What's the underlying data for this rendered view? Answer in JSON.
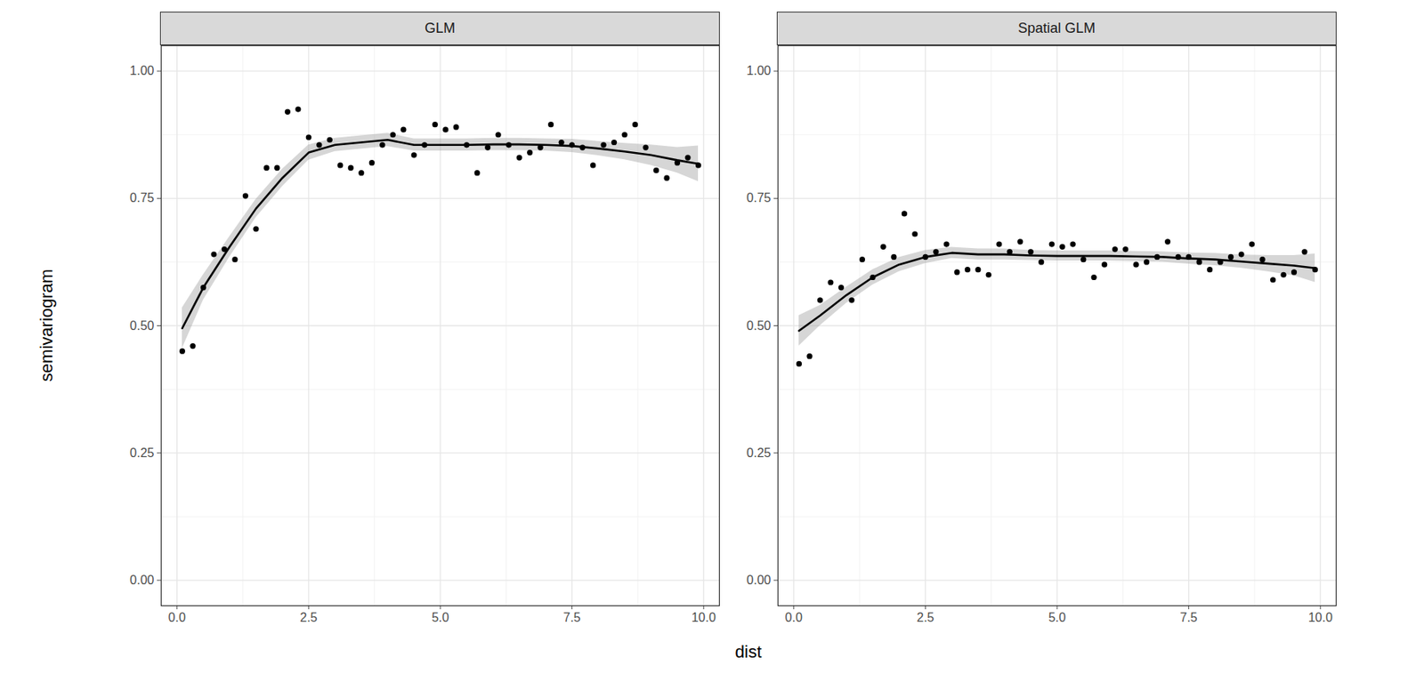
{
  "chart_data": {
    "type": "scatter",
    "xlabel": "dist",
    "ylabel": "semivariogram",
    "color": "#000000",
    "grid": true,
    "xlim": [
      -0.3,
      10.3
    ],
    "ylim": [
      -0.05,
      1.05
    ],
    "xticks": [
      {
        "value": 0,
        "label": "0.0"
      },
      {
        "value": 2.5,
        "label": "2.5"
      },
      {
        "value": 5,
        "label": "5.0"
      },
      {
        "value": 7.5,
        "label": "7.5"
      },
      {
        "value": 10,
        "label": "10.0"
      }
    ],
    "yticks": [
      {
        "value": 0,
        "label": "0.00"
      },
      {
        "value": 0.25,
        "label": "0.25"
      },
      {
        "value": 0.5,
        "label": "0.50"
      },
      {
        "value": 0.75,
        "label": "0.75"
      },
      {
        "value": 1,
        "label": "1.00"
      }
    ],
    "x": [
      0.1,
      0.3,
      0.5,
      0.7,
      0.9,
      1.1,
      1.3,
      1.5,
      1.7,
      1.9,
      2.1,
      2.3,
      2.5,
      2.7,
      2.9,
      3.1,
      3.3,
      3.5,
      3.7,
      3.9,
      4.1,
      4.3,
      4.5,
      4.7,
      4.9,
      5.1,
      5.3,
      5.5,
      5.7,
      5.9,
      6.1,
      6.3,
      6.5,
      6.7,
      6.9,
      7.1,
      7.3,
      7.5,
      7.7,
      7.9,
      8.1,
      8.3,
      8.5,
      8.7,
      8.9,
      9.1,
      9.3,
      9.5,
      9.7,
      9.9
    ],
    "facets": [
      {
        "title": "GLM",
        "values": [
          0.45,
          0.46,
          0.575,
          0.64,
          0.65,
          0.63,
          0.755,
          0.69,
          0.81,
          0.81,
          0.92,
          0.925,
          0.87,
          0.855,
          0.865,
          0.815,
          0.81,
          0.8,
          0.82,
          0.855,
          0.875,
          0.885,
          0.835,
          0.855,
          0.895,
          0.885,
          0.89,
          0.855,
          0.8,
          0.85,
          0.875,
          0.855,
          0.83,
          0.84,
          0.85,
          0.895,
          0.86,
          0.855,
          0.85,
          0.815,
          0.855,
          0.86,
          0.875,
          0.895,
          0.85,
          0.805,
          0.79,
          0.82,
          0.83,
          0.815
        ],
        "smooth": {
          "x": [
            0.1,
            0.5,
            1,
            1.5,
            2,
            2.5,
            3,
            3.5,
            4,
            4.5,
            5,
            5.5,
            6,
            6.5,
            7,
            7.5,
            8,
            8.5,
            9,
            9.5,
            9.9
          ],
          "values": [
            0.495,
            0.575,
            0.655,
            0.73,
            0.79,
            0.84,
            0.855,
            0.86,
            0.865,
            0.855,
            0.855,
            0.855,
            0.856,
            0.856,
            0.855,
            0.853,
            0.848,
            0.842,
            0.835,
            0.825,
            0.818
          ],
          "lower": [
            0.455,
            0.55,
            0.635,
            0.712,
            0.773,
            0.825,
            0.842,
            0.847,
            0.852,
            0.843,
            0.843,
            0.843,
            0.844,
            0.844,
            0.843,
            0.84,
            0.834,
            0.826,
            0.815,
            0.8,
            0.783
          ],
          "upper": [
            0.535,
            0.6,
            0.675,
            0.748,
            0.807,
            0.855,
            0.868,
            0.873,
            0.878,
            0.867,
            0.867,
            0.867,
            0.868,
            0.868,
            0.867,
            0.866,
            0.862,
            0.858,
            0.855,
            0.85,
            0.853
          ]
        }
      },
      {
        "title": "Spatial GLM",
        "values": [
          0.425,
          0.44,
          0.55,
          0.585,
          0.575,
          0.55,
          0.63,
          0.595,
          0.655,
          0.635,
          0.72,
          0.68,
          0.635,
          0.645,
          0.66,
          0.605,
          0.61,
          0.61,
          0.6,
          0.66,
          0.645,
          0.665,
          0.645,
          0.625,
          0.66,
          0.655,
          0.66,
          0.63,
          0.595,
          0.62,
          0.65,
          0.65,
          0.62,
          0.625,
          0.635,
          0.665,
          0.635,
          0.635,
          0.625,
          0.61,
          0.625,
          0.635,
          0.64,
          0.66,
          0.63,
          0.59,
          0.6,
          0.605,
          0.645,
          0.61
        ],
        "smooth": {
          "x": [
            0.1,
            0.5,
            1,
            1.5,
            2,
            2.5,
            3,
            3.5,
            4,
            4.5,
            5,
            5.5,
            6,
            6.5,
            7,
            7.5,
            8,
            8.5,
            9,
            9.5,
            9.9
          ],
          "values": [
            0.49,
            0.52,
            0.56,
            0.595,
            0.62,
            0.635,
            0.643,
            0.64,
            0.64,
            0.638,
            0.637,
            0.637,
            0.637,
            0.636,
            0.635,
            0.632,
            0.63,
            0.626,
            0.622,
            0.618,
            0.613
          ],
          "lower": [
            0.46,
            0.5,
            0.544,
            0.58,
            0.606,
            0.622,
            0.632,
            0.629,
            0.629,
            0.628,
            0.627,
            0.627,
            0.627,
            0.626,
            0.625,
            0.621,
            0.618,
            0.613,
            0.606,
            0.598,
            0.585
          ],
          "upper": [
            0.52,
            0.54,
            0.576,
            0.61,
            0.634,
            0.648,
            0.654,
            0.651,
            0.651,
            0.648,
            0.647,
            0.647,
            0.647,
            0.646,
            0.645,
            0.643,
            0.642,
            0.639,
            0.638,
            0.638,
            0.641
          ]
        }
      }
    ]
  }
}
